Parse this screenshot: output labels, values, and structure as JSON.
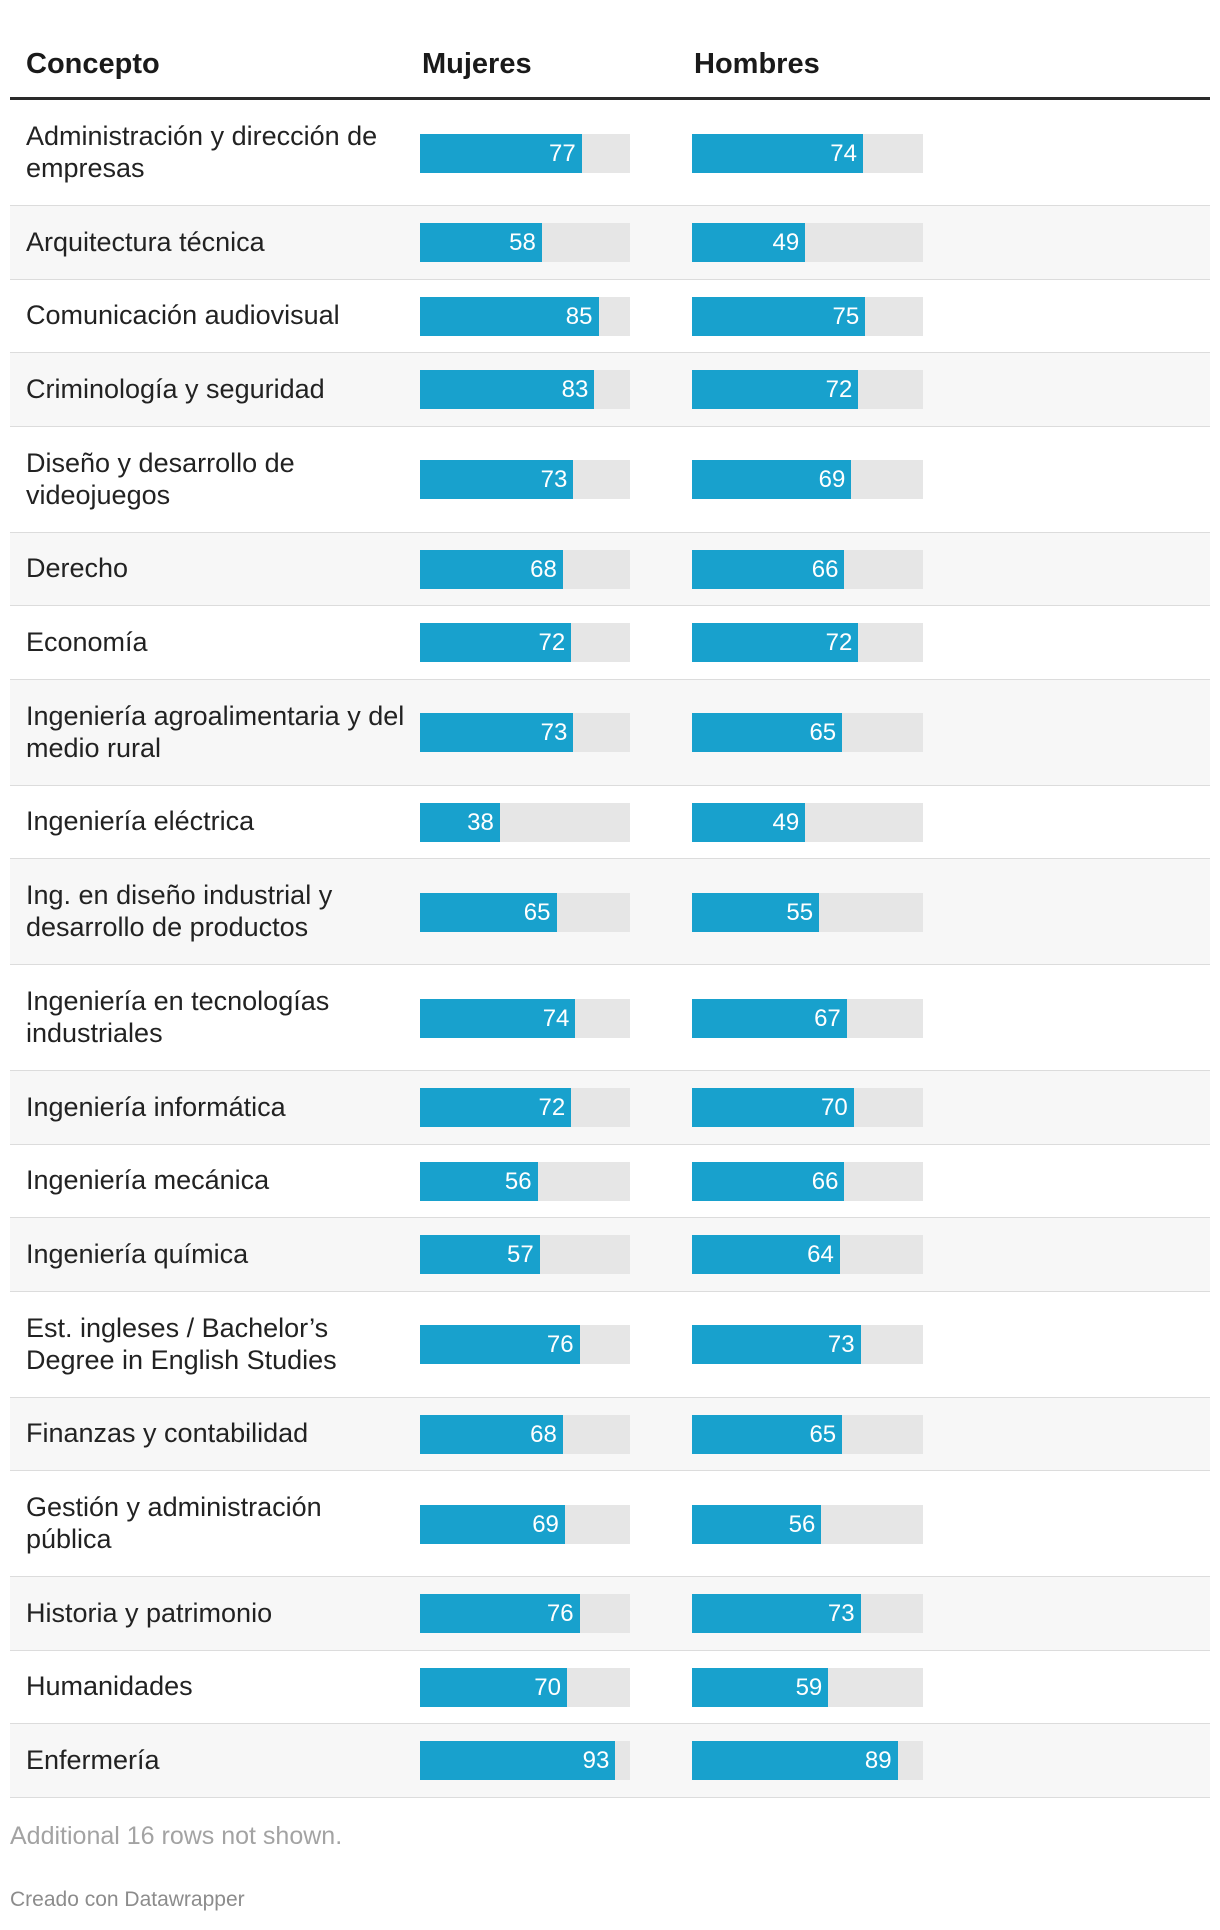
{
  "header": {
    "concepto": "Concepto",
    "mujeres": "Mujeres",
    "hombres": "Hombres"
  },
  "chart_data": {
    "type": "table",
    "columns": [
      "Concepto",
      "Mujeres",
      "Hombres"
    ],
    "max_value": 100,
    "bar_color": "#18a1cd",
    "track_color": "#e6e6e6",
    "rows": [
      {
        "concepto": "Administración y dirección de empresas",
        "mujeres": 77,
        "hombres": 74
      },
      {
        "concepto": "Arquitectura técnica",
        "mujeres": 58,
        "hombres": 49
      },
      {
        "concepto": "Comunicación audiovisual",
        "mujeres": 85,
        "hombres": 75
      },
      {
        "concepto": "Criminología y seguridad",
        "mujeres": 83,
        "hombres": 72
      },
      {
        "concepto": "Diseño y desarrollo de videojuegos",
        "mujeres": 73,
        "hombres": 69
      },
      {
        "concepto": "Derecho",
        "mujeres": 68,
        "hombres": 66
      },
      {
        "concepto": "Economía",
        "mujeres": 72,
        "hombres": 72
      },
      {
        "concepto": "Ingeniería agroalimentaria y del medio rural",
        "mujeres": 73,
        "hombres": 65
      },
      {
        "concepto": "Ingeniería eléctrica",
        "mujeres": 38,
        "hombres": 49
      },
      {
        "concepto": "Ing. en diseño industrial y desarrollo de productos",
        "mujeres": 65,
        "hombres": 55
      },
      {
        "concepto": "Ingeniería en tecnologías industriales",
        "mujeres": 74,
        "hombres": 67
      },
      {
        "concepto": "Ingeniería informática",
        "mujeres": 72,
        "hombres": 70
      },
      {
        "concepto": "Ingeniería mecánica",
        "mujeres": 56,
        "hombres": 66
      },
      {
        "concepto": "Ingeniería química",
        "mujeres": 57,
        "hombres": 64
      },
      {
        "concepto": "Est. ingleses / Bachelor’s Degree in English Studies",
        "mujeres": 76,
        "hombres": 73
      },
      {
        "concepto": "Finanzas y contabilidad",
        "mujeres": 68,
        "hombres": 65
      },
      {
        "concepto": "Gestión y administración pública",
        "mujeres": 69,
        "hombres": 56
      },
      {
        "concepto": "Historia y patrimonio",
        "mujeres": 76,
        "hombres": 73
      },
      {
        "concepto": "Humanidades",
        "mujeres": 70,
        "hombres": 59
      },
      {
        "concepto": "Enfermería",
        "mujeres": 93,
        "hombres": 89
      }
    ]
  },
  "footer": {
    "note": "Additional 16 rows not shown.",
    "credit": "Creado con Datawrapper"
  }
}
